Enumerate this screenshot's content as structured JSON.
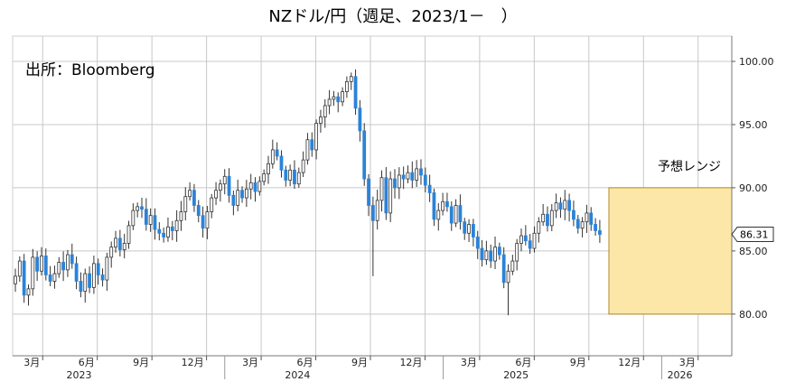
{
  "title": "NZドル/円（週足、2023/1－　）",
  "source": "出所：Bloomberg",
  "range_label": "予想レンジ",
  "last_value_label": "86.31",
  "colors": {
    "up": "#ffffff",
    "down": "#2b83d8",
    "wick": "#333333",
    "range_fill": "#fce7a8",
    "range_stroke": "#b48a20",
    "grid": "#c8c8c8"
  },
  "chart_data": {
    "type": "candlestick",
    "title": "NZドル/円（週足、2023/1－　）",
    "frequency": "weekly",
    "x_range": [
      "2023-01",
      "2026-04"
    ],
    "ylim": [
      76.7,
      102.0
    ],
    "y_ticks": [
      "80.00",
      "85.00",
      "90.00",
      "95.00",
      "100.00"
    ],
    "x_ticks": [
      "3月",
      "6月",
      "9月",
      "12月",
      "3月",
      "6月",
      "9月",
      "12月",
      "3月",
      "6月",
      "9月",
      "12月",
      "3月"
    ],
    "x_tick_months": [
      2,
      5,
      8,
      11,
      14,
      17,
      20,
      23,
      26,
      29,
      32,
      35,
      38
    ],
    "year_labels": [
      "2023",
      "2024",
      "2025",
      "2026"
    ],
    "year_label_months": [
      4,
      16,
      28,
      37
    ],
    "last_value": 86.31,
    "forecast_range": {
      "label": "予想レンジ",
      "low": 80.0,
      "high": 90.0,
      "from": "2025-10",
      "to": "2026-03"
    },
    "close_series_weekly": [
      83.0,
      84.2,
      81.5,
      82.0,
      84.5,
      83.4,
      84.6,
      83.1,
      82.6,
      83.2,
      84.1,
      83.5,
      84.7,
      84.0,
      82.6,
      81.8,
      83.2,
      82.1,
      84.0,
      83.1,
      82.7,
      84.5,
      85.3,
      86.0,
      85.1,
      85.6,
      87.0,
      88.2,
      88.5,
      88.3,
      87.1,
      87.8,
      86.7,
      86.4,
      86.1,
      86.9,
      86.6,
      87.4,
      88.1,
      89.3,
      89.8,
      88.6,
      87.8,
      86.8,
      88.1,
      89.2,
      89.8,
      90.3,
      90.9,
      89.4,
      88.6,
      89.8,
      89.2,
      89.9,
      90.4,
      89.7,
      90.5,
      91.1,
      91.9,
      93.0,
      92.5,
      91.4,
      90.6,
      91.4,
      90.3,
      91.2,
      92.2,
      93.8,
      93.0,
      95.1,
      95.6,
      96.5,
      97.0,
      97.2,
      96.8,
      97.6,
      98.4,
      98.8,
      96.3,
      94.5,
      90.7,
      88.6,
      87.4,
      89.0,
      90.8,
      88.0,
      90.7,
      90.0,
      91.0,
      90.7,
      91.2,
      90.6,
      91.5,
      91.0,
      90.2,
      89.6,
      87.5,
      88.2,
      88.9,
      88.5,
      87.2,
      88.6,
      87.3,
      86.4,
      87.1,
      86.1,
      85.2,
      84.3,
      85.0,
      84.2,
      85.3,
      84.7,
      82.5,
      83.4,
      84.2,
      85.6,
      86.2,
      85.8,
      85.2,
      86.4,
      87.3,
      87.9,
      87.0,
      88.2,
      88.8,
      88.3,
      89.0,
      88.2,
      87.5,
      86.8,
      87.3,
      88.0,
      87.1,
      86.6,
      86.31
    ],
    "notable_extremes": {
      "high": 98.8,
      "low_2024_08": 83.0,
      "low_2025_04": 79.9
    }
  }
}
